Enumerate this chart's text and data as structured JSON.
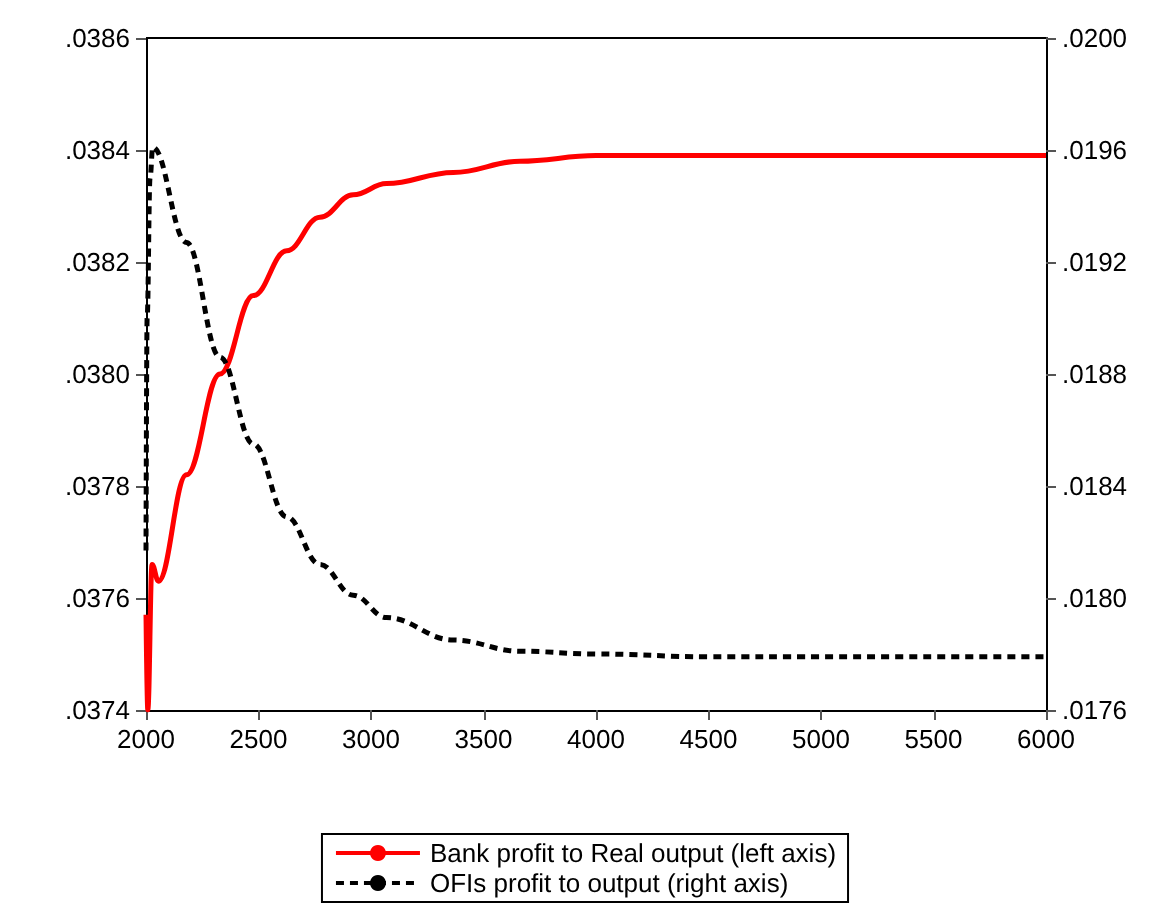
{
  "chart_data": {
    "type": "line",
    "xlim": [
      2000,
      6000
    ],
    "xticks": [
      2000,
      2500,
      3000,
      3500,
      4000,
      4500,
      5000,
      5500,
      6000
    ],
    "ylim": [
      0.0374,
      0.0386
    ],
    "yticks": [
      {
        "value": 0.0374,
        "label": ".0374"
      },
      {
        "value": 0.0376,
        "label": ".0376"
      },
      {
        "value": 0.0378,
        "label": ".0378"
      },
      {
        "value": 0.038,
        "label": ".0380"
      },
      {
        "value": 0.0382,
        "label": ".0382"
      },
      {
        "value": 0.0384,
        "label": ".0384"
      },
      {
        "value": 0.0386,
        "label": ".0386"
      }
    ],
    "y2lim": [
      0.0176,
      0.02
    ],
    "y2ticks": [
      {
        "value": 0.0176,
        "label": ".0176"
      },
      {
        "value": 0.018,
        "label": ".0180"
      },
      {
        "value": 0.0184,
        "label": ".0184"
      },
      {
        "value": 0.0188,
        "label": ".0188"
      },
      {
        "value": 0.0192,
        "label": ".0192"
      },
      {
        "value": 0.0196,
        "label": ".0196"
      },
      {
        "value": 0.02,
        "label": ".0200"
      }
    ],
    "grid": false,
    "legend": "bottom",
    "marker": "none",
    "series": [
      {
        "name": "Bank profit to Real output (left axis)",
        "color": "#ff0000",
        "line_style": "solid",
        "x": [
          2000,
          2008,
          2027,
          2055,
          2180,
          2329,
          2477,
          2625,
          2773,
          2921,
          3069,
          3366,
          3662,
          4000,
          4500,
          6000
        ],
        "values": [
          0.03757,
          0.0374,
          0.03766,
          0.03763,
          0.03782,
          0.038,
          0.03814,
          0.03822,
          0.03828,
          0.03832,
          0.03834,
          0.03836,
          0.03838,
          0.03839,
          0.03839,
          0.03839
        ]
      },
      {
        "name": "OFIs profit to output (right axis)",
        "color": "#000000",
        "line_style": "dashed",
        "axis": "y2",
        "x": [
          2000,
          2005,
          2018,
          2030,
          2180,
          2329,
          2477,
          2625,
          2773,
          2921,
          3069,
          3366,
          3662,
          4000,
          4500,
          5000,
          6000
        ],
        "values": [
          0.01817,
          0.019,
          0.0195,
          0.01961,
          0.01927,
          0.01886,
          0.01855,
          0.01829,
          0.01812,
          0.01801,
          0.01793,
          0.01785,
          0.01781,
          0.0178,
          0.01779,
          0.01779,
          0.01779
        ]
      }
    ]
  }
}
